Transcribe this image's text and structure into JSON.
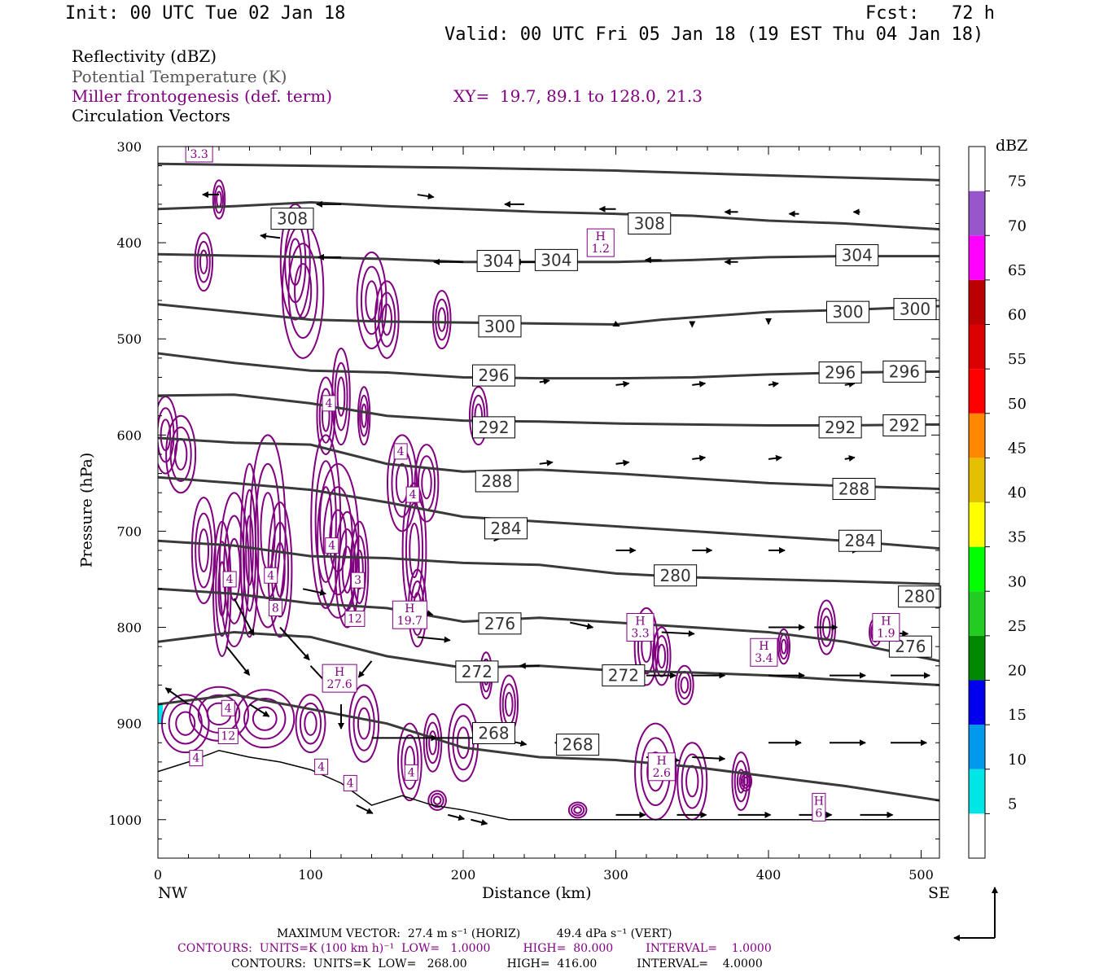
{
  "header": {
    "init": "Init: 00 UTC Tue 02 Jan 18",
    "fcst": "Fcst:   72 h",
    "valid": "Valid: 00 UTC Fri 05 Jan 18 (19 EST Thu 04 Jan 18)"
  },
  "fields": {
    "reflectivity": "Reflectivity (dBZ)",
    "theta": "Potential Temperature (K)",
    "miller": "Miller frontogenesis (def. term)",
    "xy": "XY=  19.7, 89.1 to 128.0, 21.3",
    "vectors": "Circulation Vectors"
  },
  "footer": {
    "max_vector": "MAXIMUM VECTOR:  27.4 m s⁻¹ (HORIZ)          49.4 dPa s⁻¹ (VERT)",
    "contours_frontogenesis": "CONTOURS:  UNITS=K (100 km h)⁻¹  LOW=   1.0000         HIGH=  80.000         INTERVAL=    1.0000",
    "contours_theta": "CONTOURS:  UNITS=K  LOW=   268.00           HIGH=  416.00           INTERVAL=    4.0000"
  },
  "colors": {
    "frontogenesis": "#800080",
    "theta": "#3a3a3a",
    "teal_echo": "#00e5e5"
  },
  "chart_data": {
    "type": "cross-section",
    "xlabel": "Distance (km)",
    "ylabel": "Pressure (hPa)",
    "x_ticks": [
      "0",
      "100",
      "200",
      "300",
      "400",
      "500"
    ],
    "y_ticks": [
      "300",
      "400",
      "500",
      "600",
      "700",
      "800",
      "900",
      "1000"
    ],
    "xlim": [
      0,
      512
    ],
    "ylim": [
      1040,
      300
    ],
    "x_end_labels": {
      "left": "NW",
      "right": "SE"
    },
    "colorbar": {
      "unit": "dBZ",
      "levels": [
        "5",
        "10",
        "15",
        "20",
        "25",
        "30",
        "35",
        "40",
        "45",
        "50",
        "55",
        "60",
        "65",
        "70",
        "75"
      ],
      "colors": [
        "#00e5e5",
        "#0099ee",
        "#0000ee",
        "#008800",
        "#22cc22",
        "#00ff00",
        "#ffff00",
        "#e5c000",
        "#ff8800",
        "#ff0000",
        "#dd0000",
        "#bb0000",
        "#ff00ff",
        "#9955cc",
        "#ffffff"
      ]
    },
    "theta_contours": [
      {
        "value": 308,
        "points": [
          [
            0,
            318
          ],
          [
            100,
            320
          ],
          [
            200,
            322
          ],
          [
            300,
            325
          ],
          [
            400,
            330
          ],
          [
            512,
            335
          ]
        ]
      },
      {
        "value": 308,
        "points": [
          [
            0,
            365
          ],
          [
            50,
            362
          ],
          [
            100,
            358
          ],
          [
            150,
            362
          ],
          [
            200,
            365
          ],
          [
            250,
            368
          ],
          [
            300,
            370
          ],
          [
            350,
            372
          ],
          [
            400,
            377
          ],
          [
            450,
            380
          ],
          [
            512,
            386
          ]
        ]
      },
      {
        "value": 304,
        "points": [
          [
            0,
            412
          ],
          [
            100,
            415
          ],
          [
            150,
            417
          ],
          [
            200,
            420
          ],
          [
            250,
            420
          ],
          [
            300,
            420
          ],
          [
            350,
            418
          ],
          [
            400,
            415
          ],
          [
            450,
            414
          ],
          [
            512,
            414
          ]
        ]
      },
      {
        "value": 300,
        "points": [
          [
            0,
            464
          ],
          [
            50,
            472
          ],
          [
            100,
            480
          ],
          [
            150,
            482
          ],
          [
            200,
            483
          ],
          [
            250,
            484
          ],
          [
            300,
            485
          ],
          [
            330,
            480
          ],
          [
            400,
            472
          ],
          [
            450,
            470
          ],
          [
            512,
            466
          ]
        ]
      },
      {
        "value": 296,
        "points": [
          [
            0,
            515
          ],
          [
            50,
            525
          ],
          [
            100,
            533
          ],
          [
            150,
            535
          ],
          [
            200,
            540
          ],
          [
            250,
            541
          ],
          [
            300,
            541
          ],
          [
            350,
            540
          ],
          [
            400,
            537
          ],
          [
            450,
            535
          ],
          [
            512,
            534
          ]
        ]
      },
      {
        "value": 292,
        "points": [
          [
            0,
            559
          ],
          [
            50,
            558
          ],
          [
            100,
            567
          ],
          [
            150,
            580
          ],
          [
            200,
            585
          ],
          [
            250,
            586
          ],
          [
            300,
            588
          ],
          [
            350,
            589
          ],
          [
            400,
            590
          ],
          [
            450,
            590
          ],
          [
            512,
            589
          ]
        ]
      },
      {
        "value": 288,
        "points": [
          [
            0,
            603
          ],
          [
            50,
            608
          ],
          [
            100,
            610
          ],
          [
            150,
            630
          ],
          [
            200,
            638
          ],
          [
            250,
            636
          ],
          [
            300,
            640
          ],
          [
            350,
            645
          ],
          [
            400,
            650
          ],
          [
            450,
            653
          ],
          [
            512,
            656
          ]
        ]
      },
      {
        "value": 284,
        "points": [
          [
            0,
            644
          ],
          [
            50,
            650
          ],
          [
            100,
            657
          ],
          [
            150,
            670
          ],
          [
            200,
            685
          ],
          [
            250,
            690
          ],
          [
            300,
            695
          ],
          [
            350,
            700
          ],
          [
            400,
            705
          ],
          [
            450,
            710
          ],
          [
            512,
            718
          ]
        ]
      },
      {
        "value": 280,
        "points": [
          [
            0,
            710
          ],
          [
            50,
            715
          ],
          [
            100,
            726
          ],
          [
            150,
            728
          ],
          [
            200,
            733
          ],
          [
            250,
            735
          ],
          [
            300,
            744
          ],
          [
            350,
            748
          ],
          [
            400,
            750
          ],
          [
            450,
            752
          ],
          [
            512,
            755
          ]
        ]
      },
      {
        "value": 276,
        "points": [
          [
            0,
            760
          ],
          [
            50,
            765
          ],
          [
            100,
            775
          ],
          [
            150,
            780
          ],
          [
            200,
            794
          ],
          [
            250,
            790
          ],
          [
            300,
            795
          ],
          [
            350,
            800
          ],
          [
            400,
            805
          ],
          [
            450,
            815
          ],
          [
            512,
            835
          ]
        ]
      },
      {
        "value": 272,
        "points": [
          [
            0,
            815
          ],
          [
            50,
            805
          ],
          [
            100,
            810
          ],
          [
            150,
            830
          ],
          [
            200,
            842
          ],
          [
            250,
            840
          ],
          [
            300,
            845
          ],
          [
            350,
            847
          ],
          [
            400,
            850
          ],
          [
            450,
            855
          ],
          [
            512,
            860
          ]
        ]
      },
      {
        "value": 268,
        "points": [
          [
            0,
            880
          ],
          [
            50,
            870
          ],
          [
            100,
            885
          ],
          [
            150,
            900
          ],
          [
            200,
            925
          ],
          [
            250,
            935
          ],
          [
            300,
            938
          ],
          [
            350,
            945
          ],
          [
            400,
            955
          ],
          [
            450,
            965
          ],
          [
            512,
            980
          ]
        ]
      }
    ],
    "theta_labels": [
      {
        "text": "308",
        "x": 88,
        "p": 375
      },
      {
        "text": "308",
        "x": 322,
        "p": 380
      },
      {
        "text": "304",
        "x": 223,
        "p": 419
      },
      {
        "text": "304",
        "x": 261,
        "p": 418
      },
      {
        "text": "304",
        "x": 458,
        "p": 413
      },
      {
        "text": "300",
        "x": 224,
        "p": 487
      },
      {
        "text": "300",
        "x": 452,
        "p": 472
      },
      {
        "text": "300",
        "x": 496,
        "p": 469
      },
      {
        "text": "296",
        "x": 220,
        "p": 538
      },
      {
        "text": "296",
        "x": 447,
        "p": 535
      },
      {
        "text": "296",
        "x": 489,
        "p": 534
      },
      {
        "text": "292",
        "x": 220,
        "p": 592
      },
      {
        "text": "292",
        "x": 447,
        "p": 592
      },
      {
        "text": "292",
        "x": 489,
        "p": 590
      },
      {
        "text": "288",
        "x": 222,
        "p": 648
      },
      {
        "text": "288",
        "x": 456,
        "p": 656
      },
      {
        "text": "284",
        "x": 228,
        "p": 697
      },
      {
        "text": "284",
        "x": 460,
        "p": 710
      },
      {
        "text": "280",
        "x": 339,
        "p": 746
      },
      {
        "text": "280",
        "x": 499,
        "p": 768
      },
      {
        "text": "276",
        "x": 224,
        "p": 796
      },
      {
        "text": "276",
        "x": 493,
        "p": 820
      },
      {
        "text": "272",
        "x": 209,
        "p": 846
      },
      {
        "text": "272",
        "x": 305,
        "p": 850
      },
      {
        "text": "268",
        "x": 220,
        "p": 910
      },
      {
        "text": "268",
        "x": 275,
        "p": 922
      }
    ],
    "frontogenesis_labels": [
      {
        "text": "3.3",
        "x": 27,
        "p": 308
      },
      {
        "text": "H\n1.2",
        "x": 290,
        "p": 400
      },
      {
        "text": "4",
        "x": 112,
        "p": 567
      },
      {
        "text": "4",
        "x": 159,
        "p": 617
      },
      {
        "text": "4",
        "x": 167,
        "p": 662
      },
      {
        "text": "4",
        "x": 114,
        "p": 715
      },
      {
        "text": "4",
        "x": 47,
        "p": 750
      },
      {
        "text": "4",
        "x": 74,
        "p": 746
      },
      {
        "text": "3",
        "x": 131,
        "p": 751
      },
      {
        "text": "8",
        "x": 77,
        "p": 780
      },
      {
        "text": "12",
        "x": 129,
        "p": 791
      },
      {
        "text": "H\n19.7",
        "x": 165,
        "p": 787
      },
      {
        "text": "H\n27.6",
        "x": 119,
        "p": 853
      },
      {
        "text": "H\n3.3",
        "x": 316,
        "p": 800
      },
      {
        "text": "H\n3.4",
        "x": 397,
        "p": 826
      },
      {
        "text": "H\n1.9",
        "x": 477,
        "p": 800
      },
      {
        "text": "4",
        "x": 46,
        "p": 884
      },
      {
        "text": "12",
        "x": 46,
        "p": 913
      },
      {
        "text": "4",
        "x": 25,
        "p": 936
      },
      {
        "text": "4",
        "x": 107,
        "p": 945
      },
      {
        "text": "4",
        "x": 126,
        "p": 962
      },
      {
        "text": "4",
        "x": 166,
        "p": 951
      },
      {
        "text": "H\n2.6",
        "x": 330,
        "p": 945
      },
      {
        "text": "H\n6",
        "x": 433,
        "p": 987
      }
    ]
  }
}
